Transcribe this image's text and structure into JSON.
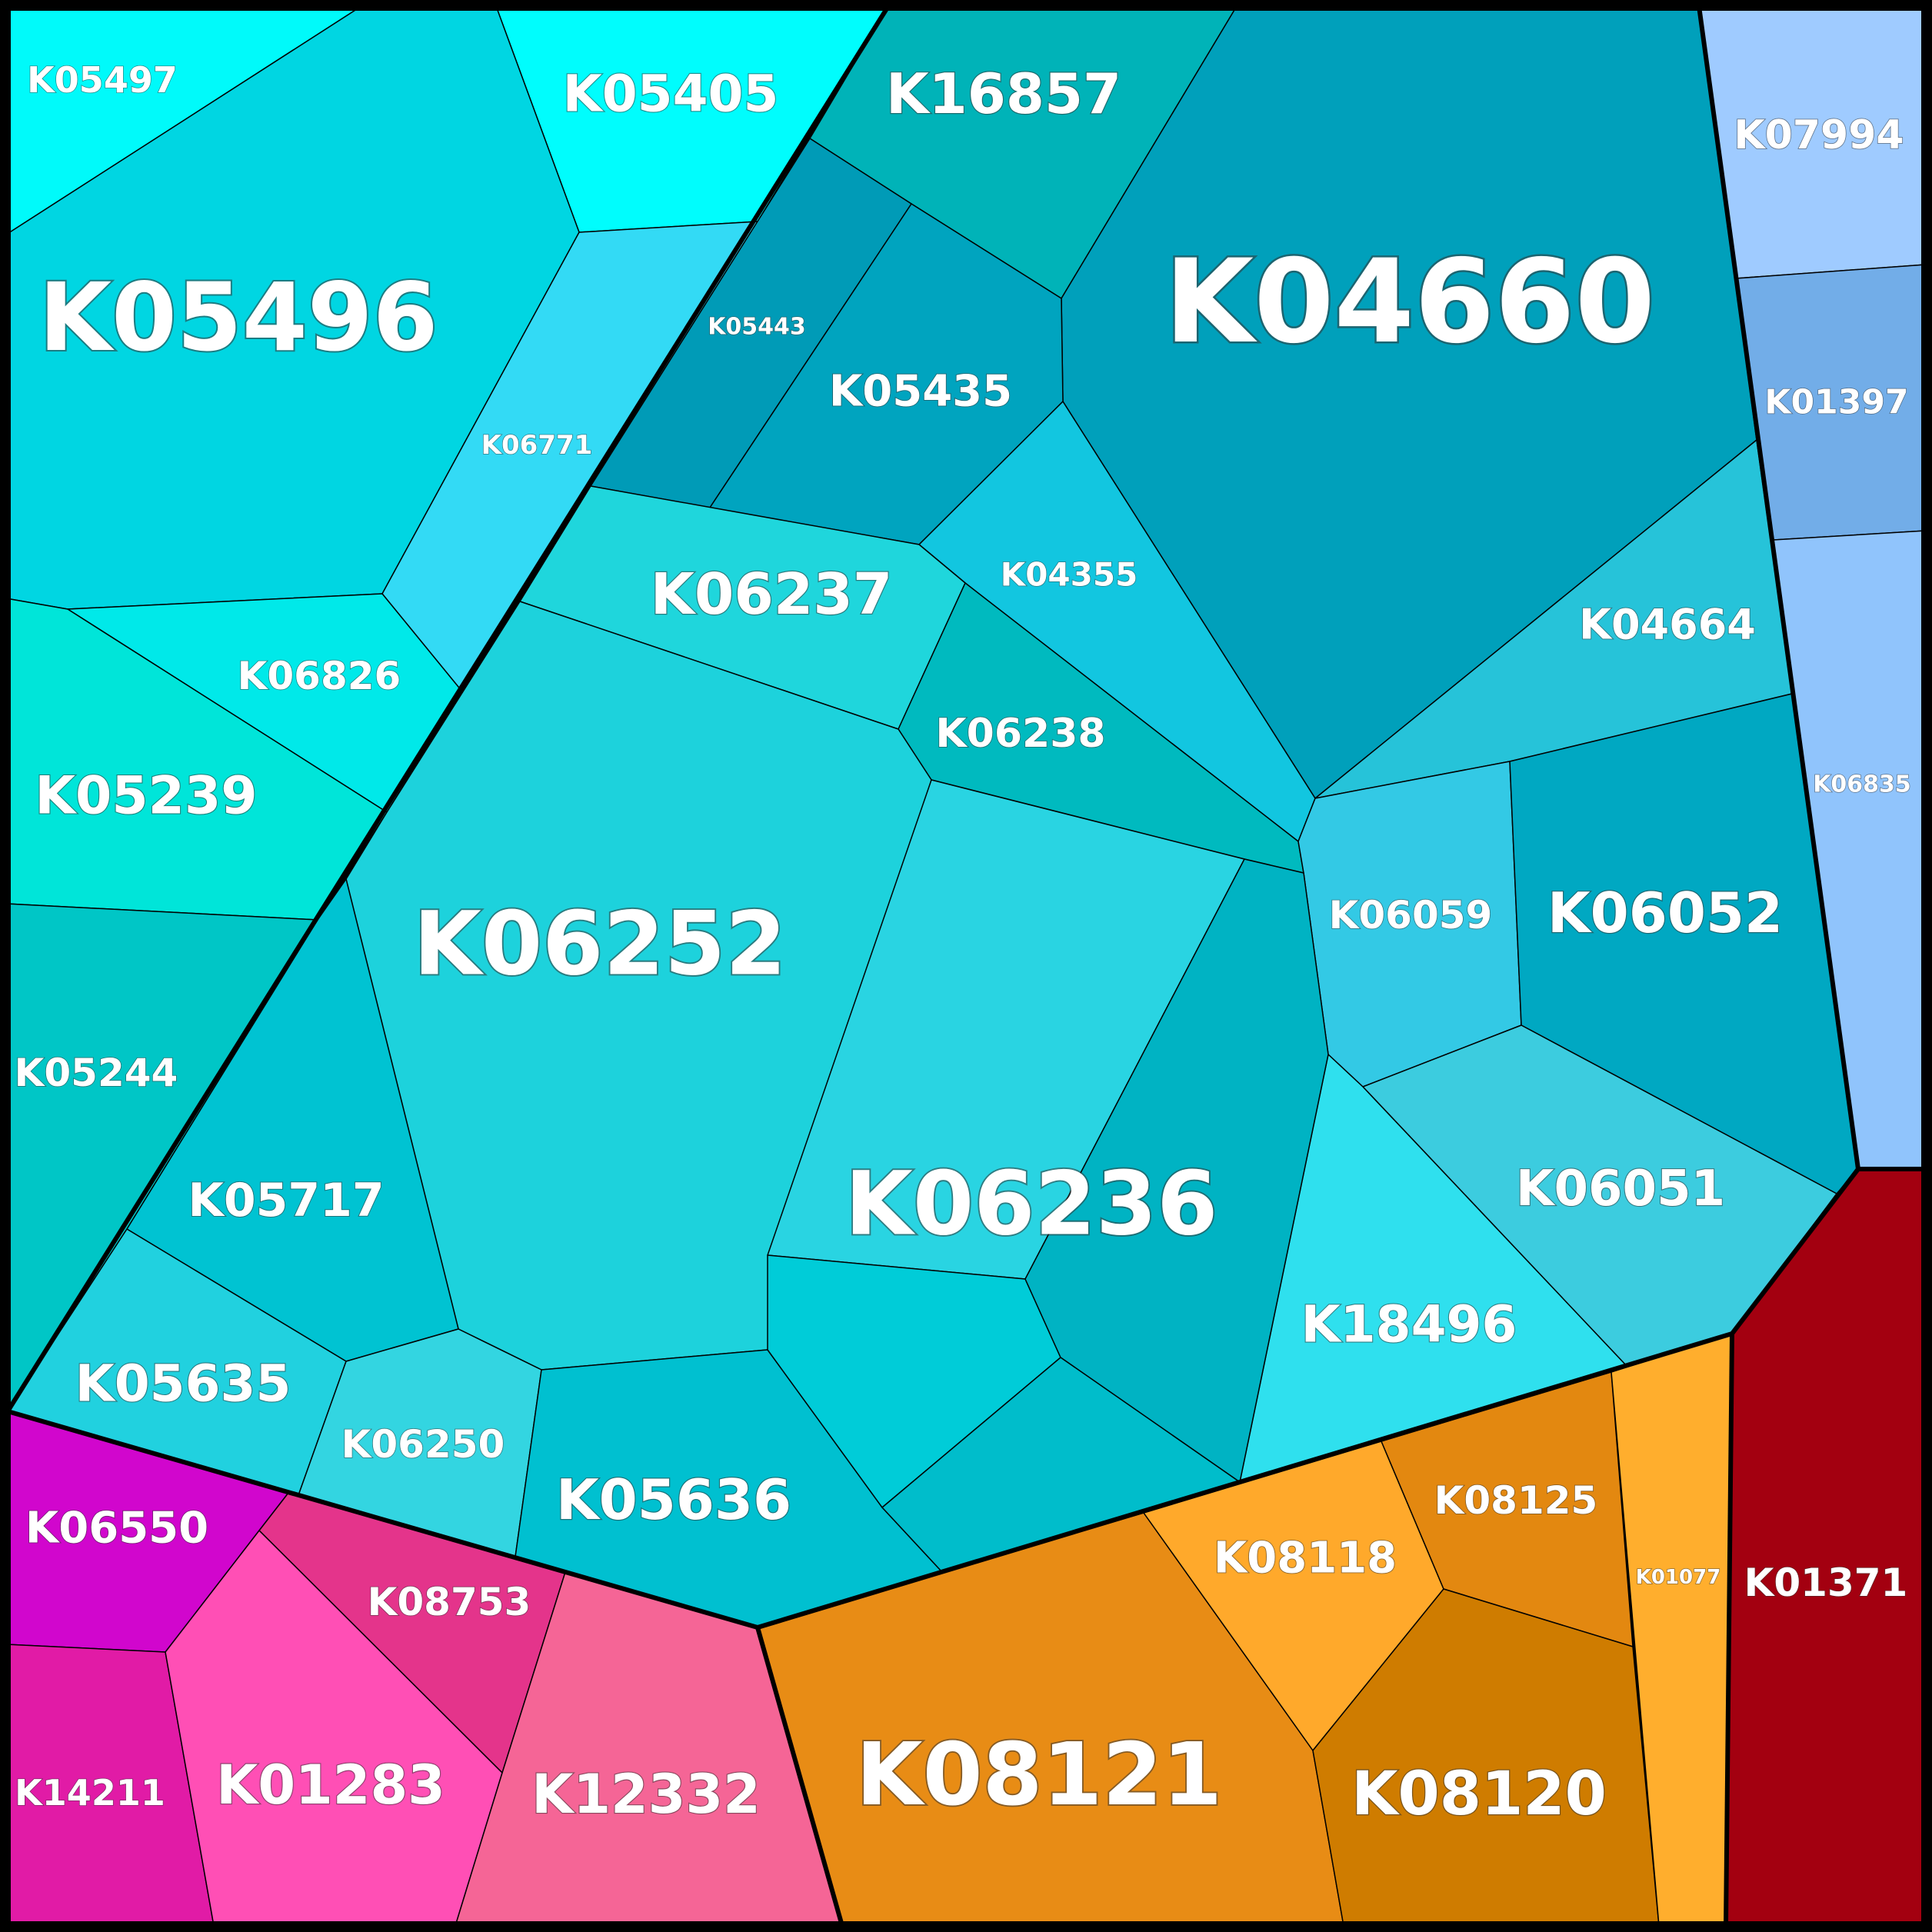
{
  "cells": [
    {
      "id": "K05497",
      "label": "K05497",
      "color": "#00fafa"
    },
    {
      "id": "K05405",
      "label": "K05405",
      "color": "#00fdfd"
    },
    {
      "id": "K16857",
      "label": "K16857",
      "color": "#00b3b8"
    },
    {
      "id": "K04660",
      "label": "K04660",
      "color": "#00a0bb"
    },
    {
      "id": "K05496",
      "label": "K05496",
      "color": "#00d6e2"
    },
    {
      "id": "K06771",
      "label": "K06771",
      "color": "#33daf5"
    },
    {
      "id": "K05443",
      "label": "K05443",
      "color": "#009bb7"
    },
    {
      "id": "K05435",
      "label": "K05435",
      "color": "#00a4bf"
    },
    {
      "id": "K04355",
      "label": "K04355",
      "color": "#12c6e0"
    },
    {
      "id": "K04664",
      "label": "K04664",
      "color": "#26c3d9"
    },
    {
      "id": "K06237",
      "label": "K06237",
      "color": "#1fd6dc"
    },
    {
      "id": "K06826",
      "label": "K06826",
      "color": "#00e9e9"
    },
    {
      "id": "K05239",
      "label": "K05239",
      "color": "#00e5d9"
    },
    {
      "id": "K06238",
      "label": "K06238",
      "color": "#00babf"
    },
    {
      "id": "K06252",
      "label": "K06252",
      "color": "#1dd2dc"
    },
    {
      "id": "K06059",
      "label": "K06059",
      "color": "#33c9e5"
    },
    {
      "id": "K06052",
      "label": "K06052",
      "color": "#00a8c2"
    },
    {
      "id": "K05244",
      "label": "K05244",
      "color": "#00c6c6"
    },
    {
      "id": "K05717",
      "label": "K05717",
      "color": "#00c3d2"
    },
    {
      "id": "K06236",
      "label": "K06236",
      "color": "#29d4e2"
    },
    {
      "id": "K06051",
      "label": "K06051",
      "color": "#3cccdf"
    },
    {
      "id": "K18496",
      "label": "K18496",
      "color": "#2fe0ee"
    },
    {
      "id": "K05635",
      "label": "K05635",
      "color": "#21d1df"
    },
    {
      "id": "K06250",
      "label": "K06250",
      "color": "#33d5e1"
    },
    {
      "id": "K05636",
      "label": "K05636",
      "color": "#00c0d0"
    },
    {
      "id": "K06550",
      "label": "K06550",
      "color": "#d106cd"
    },
    {
      "id": "K08753",
      "label": "K08753",
      "color": "#e4348b"
    },
    {
      "id": "K14211",
      "label": "K14211",
      "color": "#e11ba6"
    },
    {
      "id": "K01283",
      "label": "K01283",
      "color": "#ff4fb5"
    },
    {
      "id": "K12332",
      "label": "K12332",
      "color": "#f56596"
    },
    {
      "id": "K08121",
      "label": "K08121",
      "color": "#e88c15"
    },
    {
      "id": "K08118",
      "label": "K08118",
      "color": "#ffa92b"
    },
    {
      "id": "K08125",
      "label": "K08125",
      "color": "#e38810"
    },
    {
      "id": "K08120",
      "label": "K08120",
      "color": "#cf7c00"
    },
    {
      "id": "K01077",
      "label": "K01077",
      "color": "#ffae2d"
    },
    {
      "id": "K01371",
      "label": "K01371",
      "color": "#a30010"
    },
    {
      "id": "K07994",
      "label": "K07994",
      "color": "#9fcbff"
    },
    {
      "id": "K01397",
      "label": "K01397",
      "color": "#72ade8"
    },
    {
      "id": "K06835",
      "label": "K06835",
      "color": "#90c4fc"
    },
    {
      "id": "unlabeled-1",
      "label": "",
      "color": "#00ccd8"
    },
    {
      "id": "unlabeled-2",
      "label": "",
      "color": "#00b3c3"
    },
    {
      "id": "unlabeled-3",
      "label": "",
      "color": "#00bdcb"
    }
  ]
}
